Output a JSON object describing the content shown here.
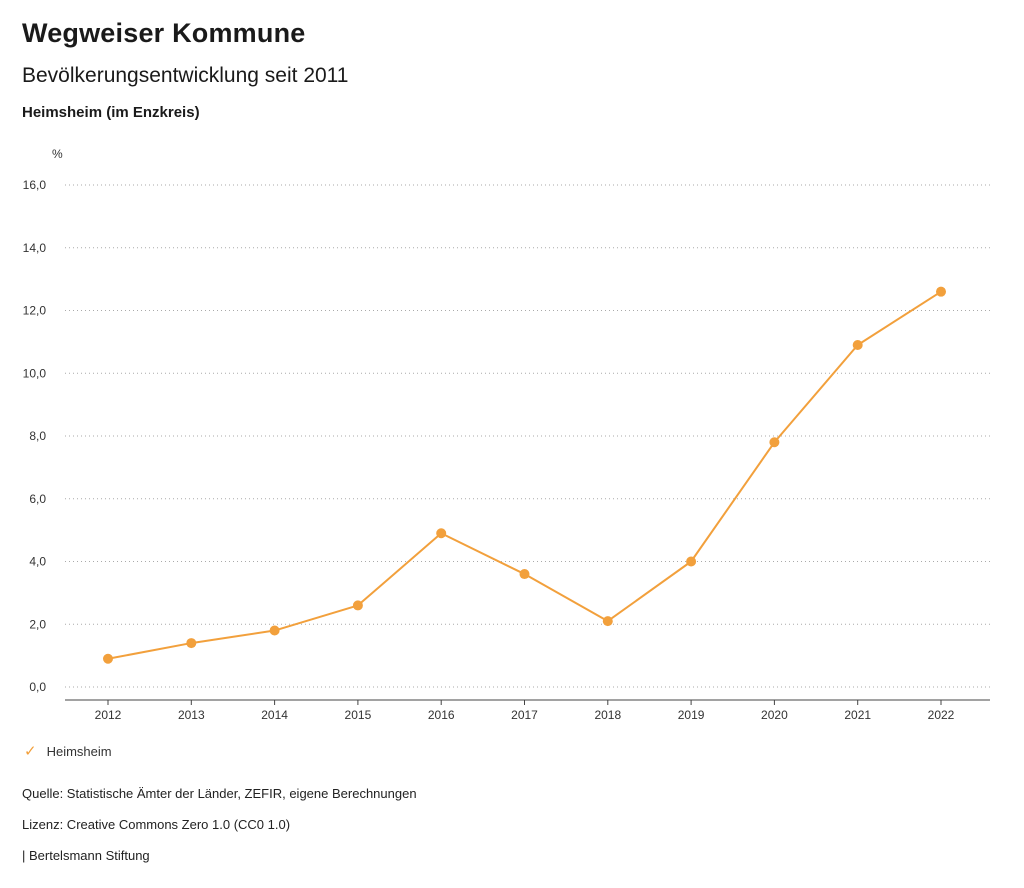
{
  "header": {
    "title": "Wegweiser Kommune",
    "subtitle": "Bevölkerungsentwicklung seit 2011",
    "region": "Heimsheim (im Enzkreis)"
  },
  "chart_data": {
    "type": "line",
    "title": "Bevölkerungsentwicklung seit 2011 — Heimsheim (im Enzkreis)",
    "unit_label": "%",
    "categories": [
      "2012",
      "2013",
      "2014",
      "2015",
      "2016",
      "2017",
      "2018",
      "2019",
      "2020",
      "2021",
      "2022"
    ],
    "series": [
      {
        "name": "Heimsheim",
        "values": [
          0.9,
          1.4,
          1.8,
          2.6,
          4.9,
          3.6,
          2.1,
          4.0,
          7.8,
          10.9,
          12.6
        ]
      }
    ],
    "xlabel": "",
    "ylabel": "%",
    "ylim": [
      0,
      16
    ],
    "ytick_step": 2,
    "grid": "dotted-horizontal",
    "legend_position": "bottom-left",
    "colors": {
      "series": "#f2a03c",
      "grid": "#aaaaaa",
      "axis": "#444444",
      "tick_text": "#333333"
    }
  },
  "legend": {
    "items": [
      {
        "label": "Heimsheim",
        "marker": "check-icon",
        "color": "#f2a03c"
      }
    ]
  },
  "footer": {
    "source": "Quelle: Statistische Ämter der Länder, ZEFIR, eigene Berechnungen",
    "license": "Lizenz: Creative Commons Zero 1.0 (CC0 1.0)",
    "attribution": "| Bertelsmann Stiftung"
  }
}
